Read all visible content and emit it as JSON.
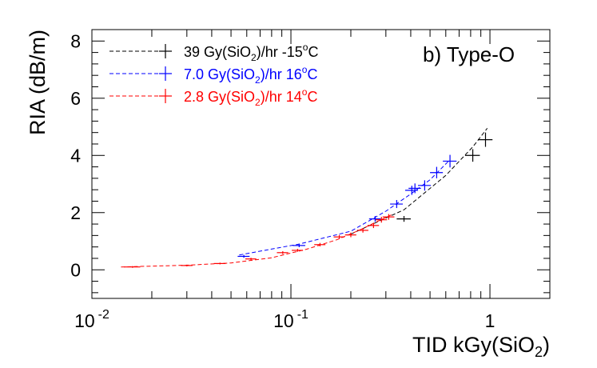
{
  "chart_data": {
    "type": "scatter",
    "panel_label": "b) Type-O",
    "xlabel_main": "TID kGy(SiO",
    "xlabel_sub": "2",
    "xlabel_end": ")",
    "ylabel": "RIA (dB/m)",
    "xscale": "log",
    "xlim": [
      0.01,
      2.0
    ],
    "ylim": [
      -1,
      8.4
    ],
    "grid": false,
    "legend_position": "top-left",
    "x_ticks": [
      {
        "value": 0.01,
        "mantissa": "10",
        "exponent": "-2"
      },
      {
        "value": 0.1,
        "mantissa": "10",
        "exponent": "-1"
      },
      {
        "value": 1,
        "mantissa": "1",
        "exponent": ""
      }
    ],
    "y_ticks": [
      {
        "value": 0,
        "label": "0"
      },
      {
        "value": 2,
        "label": "2"
      },
      {
        "value": 4,
        "label": "4"
      },
      {
        "value": 6,
        "label": "6"
      },
      {
        "value": 8,
        "label": "8"
      }
    ],
    "series": [
      {
        "legend_pre": "39 Gy(SiO",
        "legend_sub": "2",
        "legend_mid": ")/hr -15",
        "legend_sup": "o",
        "legend_post": "C",
        "color": "#000000",
        "points": [
          {
            "x": 0.37,
            "y": 1.78,
            "xerr": 0.03,
            "yerr": 0.1
          },
          {
            "x": 0.82,
            "y": 4.0,
            "xerr": 0.07,
            "yerr": 0.22
          },
          {
            "x": 0.95,
            "y": 4.55,
            "xerr": 0.08,
            "yerr": 0.25
          }
        ],
        "fit_x": [
          0.2,
          0.37,
          0.6,
          0.82,
          0.97
        ],
        "fit_y": [
          1.25,
          2.1,
          3.3,
          4.3,
          4.95
        ]
      },
      {
        "legend_pre": "7.0 Gy(SiO",
        "legend_sub": "2",
        "legend_mid": ")/hr 16",
        "legend_sup": "o",
        "legend_post": "C",
        "color": "#0000ff",
        "points": [
          {
            "x": 0.058,
            "y": 0.47,
            "xerr": 0.004,
            "yerr": 0.05
          },
          {
            "x": 0.11,
            "y": 0.85,
            "xerr": 0.008,
            "yerr": 0.06
          },
          {
            "x": 0.265,
            "y": 1.78,
            "xerr": 0.018,
            "yerr": 0.1
          },
          {
            "x": 0.34,
            "y": 2.3,
            "xerr": 0.025,
            "yerr": 0.14
          },
          {
            "x": 0.405,
            "y": 2.78,
            "xerr": 0.03,
            "yerr": 0.16
          },
          {
            "x": 0.42,
            "y": 2.85,
            "xerr": 0.03,
            "yerr": 0.17
          },
          {
            "x": 0.47,
            "y": 2.95,
            "xerr": 0.035,
            "yerr": 0.18
          },
          {
            "x": 0.54,
            "y": 3.4,
            "xerr": 0.04,
            "yerr": 0.2
          },
          {
            "x": 0.63,
            "y": 3.8,
            "xerr": 0.05,
            "yerr": 0.22
          }
        ],
        "fit_x": [
          0.055,
          0.11,
          0.2,
          0.3,
          0.4,
          0.5,
          0.63
        ],
        "fit_y": [
          0.52,
          0.9,
          1.35,
          2.05,
          2.65,
          3.15,
          3.85
        ]
      },
      {
        "legend_pre": "2.8 Gy(SiO",
        "legend_sub": "2",
        "legend_mid": ")/hr 14",
        "legend_sup": "o",
        "legend_post": "C",
        "color": "#ff0000",
        "points": [
          {
            "x": 0.016,
            "y": 0.1,
            "xerr": 0.0015,
            "yerr": 0.03
          },
          {
            "x": 0.03,
            "y": 0.15,
            "xerr": 0.002,
            "yerr": 0.03
          },
          {
            "x": 0.044,
            "y": 0.22,
            "xerr": 0.003,
            "yerr": 0.03
          },
          {
            "x": 0.063,
            "y": 0.38,
            "xerr": 0.004,
            "yerr": 0.04
          },
          {
            "x": 0.091,
            "y": 0.6,
            "xerr": 0.006,
            "yerr": 0.05
          },
          {
            "x": 0.108,
            "y": 0.68,
            "xerr": 0.007,
            "yerr": 0.05
          },
          {
            "x": 0.14,
            "y": 0.88,
            "xerr": 0.009,
            "yerr": 0.06
          },
          {
            "x": 0.175,
            "y": 1.15,
            "xerr": 0.011,
            "yerr": 0.07
          },
          {
            "x": 0.2,
            "y": 1.22,
            "xerr": 0.013,
            "yerr": 0.08
          },
          {
            "x": 0.23,
            "y": 1.38,
            "xerr": 0.015,
            "yerr": 0.08
          },
          {
            "x": 0.26,
            "y": 1.55,
            "xerr": 0.017,
            "yerr": 0.09
          },
          {
            "x": 0.285,
            "y": 1.75,
            "xerr": 0.019,
            "yerr": 0.1
          },
          {
            "x": 0.31,
            "y": 1.85,
            "xerr": 0.021,
            "yerr": 0.1
          }
        ],
        "fit_x": [
          0.014,
          0.03,
          0.05,
          0.08,
          0.12,
          0.17,
          0.22,
          0.27,
          0.32
        ],
        "fit_y": [
          0.1,
          0.16,
          0.24,
          0.42,
          0.72,
          1.05,
          1.38,
          1.68,
          1.92
        ]
      }
    ]
  }
}
